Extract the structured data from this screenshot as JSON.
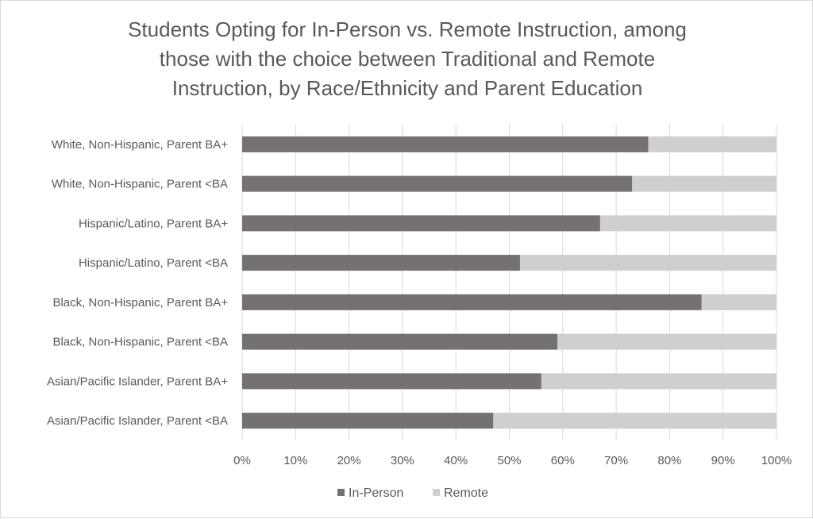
{
  "chart_data": {
    "type": "bar",
    "orientation": "horizontal",
    "stacked": true,
    "title_lines": [
      "Students Opting for In-Person vs. Remote Instruction, among",
      "those with the choice between Traditional and Remote",
      "Instruction, by Race/Ethnicity and Parent Education"
    ],
    "categories": [
      "White, Non-Hispanic, Parent BA+",
      "White, Non-Hispanic, Parent <BA",
      "Hispanic/Latino, Parent BA+",
      "Hispanic/Latino, Parent <BA",
      "Black, Non-Hispanic, Parent BA+",
      "Black, Non-Hispanic, Parent <BA",
      "Asian/Pacific Islander, Parent BA+",
      "Asian/Pacific Islander, Parent <BA"
    ],
    "series": [
      {
        "name": "In-Person",
        "color": "#767171",
        "values": [
          76,
          73,
          67,
          52,
          86,
          59,
          56,
          47
        ]
      },
      {
        "name": "Remote",
        "color": "#d0cece",
        "values": [
          24,
          27,
          33,
          48,
          14,
          41,
          44,
          53
        ]
      }
    ],
    "xlim": [
      0,
      100
    ],
    "x_ticks": [
      "0%",
      "10%",
      "20%",
      "30%",
      "40%",
      "50%",
      "60%",
      "70%",
      "80%",
      "90%",
      "100%"
    ],
    "grid": true,
    "legend_position": "bottom"
  }
}
